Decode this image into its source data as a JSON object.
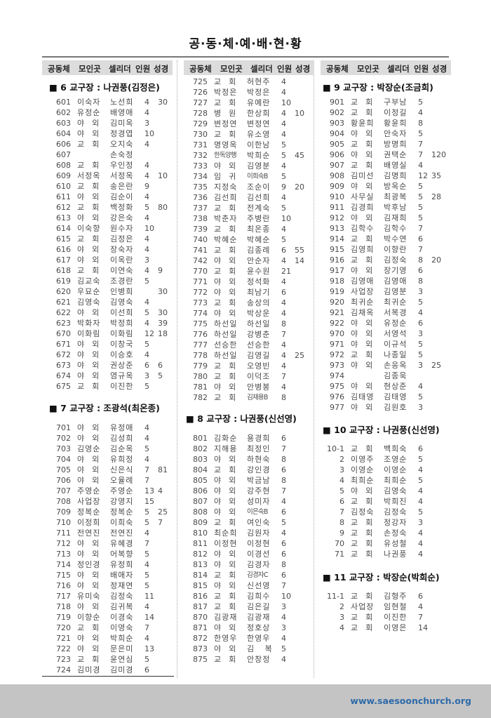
{
  "page_title": "공·동·체·예·배·현·황",
  "columns_header": [
    "공동체",
    "모인곳",
    "셀리더",
    "인원",
    "성경"
  ],
  "sections": {
    "s6": {
      "title": "■ 6 교구장 : 나권풍(김정은)",
      "rows": [
        [
          "601",
          "이숙자",
          "노선희",
          "4",
          "30"
        ],
        [
          "602",
          "유정순",
          "배영애",
          "4",
          ""
        ],
        [
          "603",
          "야외",
          "김미옥",
          "3",
          ""
        ],
        [
          "604",
          "야외",
          "정경엽",
          "10",
          ""
        ],
        [
          "606",
          "교회",
          "오지숙",
          "4",
          ""
        ],
        [
          "607",
          "",
          "손숙정",
          "",
          ""
        ],
        [
          "608",
          "교회",
          "우인정",
          "4",
          ""
        ],
        [
          "609",
          "서정옥",
          "서정옥",
          "4",
          "10"
        ],
        [
          "610",
          "교회",
          "송은란",
          "9",
          ""
        ],
        [
          "611",
          "야외",
          "김순이",
          "4",
          ""
        ],
        [
          "612",
          "교회",
          "백정화",
          "5",
          "80"
        ],
        [
          "613",
          "야외",
          "강은숙",
          "4",
          ""
        ],
        [
          "614",
          "이숙향",
          "원수자",
          "10",
          ""
        ],
        [
          "615",
          "교회",
          "김정은",
          "4",
          ""
        ],
        [
          "616",
          "야외",
          "장숙자",
          "4",
          ""
        ],
        [
          "617",
          "야외",
          "이옥란",
          "3",
          ""
        ],
        [
          "618",
          "교회",
          "이연숙",
          "4",
          "9"
        ],
        [
          "619",
          "김교숙",
          "조경란",
          "5",
          ""
        ],
        [
          "620",
          "우묘순",
          "인병희",
          "",
          "30"
        ],
        [
          "621",
          "김영숙",
          "김영숙",
          "4",
          ""
        ],
        [
          "622",
          "야외",
          "이선희",
          "5",
          "30"
        ],
        [
          "623",
          "박화자",
          "박정희",
          "4",
          "39"
        ],
        [
          "670",
          "이화림",
          "이화림",
          "12",
          "18"
        ],
        [
          "671",
          "야외",
          "이창국",
          "5",
          ""
        ],
        [
          "672",
          "야외",
          "이승호",
          "4",
          ""
        ],
        [
          "673",
          "야외",
          "권상준",
          "6",
          "6"
        ],
        [
          "674",
          "야외",
          "염규옥",
          "3",
          "5"
        ],
        [
          "675",
          "교회",
          "이진한",
          "5",
          ""
        ]
      ]
    },
    "s7": {
      "title": "■ 7 교구장 : 조광석(최온종)",
      "rows": [
        [
          "701",
          "야외",
          "유정애",
          "4",
          ""
        ],
        [
          "702",
          "야외",
          "김성희",
          "4",
          ""
        ],
        [
          "703",
          "김영순",
          "김순옥",
          "5",
          ""
        ],
        [
          "704",
          "야외",
          "유희정",
          "4",
          ""
        ],
        [
          "705",
          "야외",
          "신은식",
          "7",
          "81"
        ],
        [
          "706",
          "야외",
          "오율례",
          "7",
          ""
        ],
        [
          "707",
          "주영순",
          "주영순",
          "13",
          "4"
        ],
        [
          "708",
          "사업장",
          "강영지",
          "15",
          ""
        ],
        [
          "709",
          "정복순",
          "정복순",
          "5",
          "25"
        ],
        [
          "710",
          "이정희",
          "이희숙",
          "5",
          "7"
        ],
        [
          "711",
          "전연진",
          "전연진",
          "4",
          ""
        ],
        [
          "712",
          "야외",
          "유혜경",
          "7",
          ""
        ],
        [
          "713",
          "야외",
          "어복향",
          "5",
          ""
        ],
        [
          "714",
          "정인경",
          "유정희",
          "4",
          ""
        ],
        [
          "715",
          "야외",
          "배애자",
          "5",
          ""
        ],
        [
          "716",
          "야외",
          "정재연",
          "5",
          ""
        ],
        [
          "717",
          "유미숙",
          "김정숙",
          "11",
          ""
        ],
        [
          "718",
          "야외",
          "김귀복",
          "4",
          ""
        ],
        [
          "719",
          "이향순",
          "이경숙",
          "14",
          ""
        ],
        [
          "720",
          "교회",
          "이영숙",
          "7",
          ""
        ],
        [
          "721",
          "야외",
          "박희순",
          "4",
          ""
        ],
        [
          "722",
          "야외",
          "문은미",
          "13",
          ""
        ],
        [
          "723",
          "교회",
          "윤연심",
          "5",
          ""
        ],
        [
          "724",
          "김미경",
          "김미경",
          "6",
          ""
        ]
      ]
    },
    "s7b": {
      "rows": [
        [
          "725",
          "교회",
          "허현주",
          "4",
          ""
        ],
        [
          "726",
          "박정은",
          "박정은",
          "4",
          ""
        ],
        [
          "727",
          "교회",
          "유예란",
          "10",
          ""
        ],
        [
          "728",
          "병원",
          "한상희",
          "4",
          "10"
        ],
        [
          "729",
          "변정연",
          "변정연",
          "4",
          ""
        ],
        [
          "730",
          "교회",
          "유소영",
          "4",
          ""
        ],
        [
          "731",
          "명영옥",
          "이한남",
          "5",
          ""
        ],
        [
          "732",
          "한독양행",
          "박희순",
          "5",
          "45"
        ],
        [
          "733",
          "야외",
          "김영분",
          "4",
          ""
        ],
        [
          "734",
          "임귀",
          "이희숙B",
          "5",
          ""
        ],
        [
          "735",
          "지정숙",
          "조순이",
          "9",
          "20"
        ],
        [
          "736",
          "김선희",
          "김선희",
          "4",
          ""
        ],
        [
          "737",
          "교회",
          "전계숙",
          "5",
          ""
        ],
        [
          "738",
          "박춘자",
          "주병란",
          "10",
          ""
        ],
        [
          "739",
          "교회",
          "최온종",
          "4",
          ""
        ],
        [
          "740",
          "박혜순",
          "박혜순",
          "5",
          ""
        ],
        [
          "741",
          "교회",
          "김종례",
          "6",
          "55"
        ],
        [
          "742",
          "야외",
          "안순자",
          "4",
          "14"
        ],
        [
          "770",
          "교회",
          "윤수원",
          "21",
          ""
        ],
        [
          "771",
          "야외",
          "정석화",
          "4",
          ""
        ],
        [
          "772",
          "야외",
          "최남기",
          "6",
          ""
        ],
        [
          "773",
          "교회",
          "송상의",
          "4",
          ""
        ],
        [
          "774",
          "야외",
          "박상운",
          "4",
          ""
        ],
        [
          "775",
          "하선일",
          "하선일",
          "8",
          ""
        ],
        [
          "776",
          "하선일",
          "강병춘",
          "7",
          ""
        ],
        [
          "777",
          "선승한",
          "선승한",
          "4",
          ""
        ],
        [
          "778",
          "하선일",
          "김영길",
          "4",
          "25"
        ],
        [
          "779",
          "교회",
          "오영빈",
          "4",
          ""
        ],
        [
          "780",
          "교회",
          "이덕조",
          "7",
          ""
        ],
        [
          "781",
          "야외",
          "안병봉",
          "4",
          ""
        ],
        [
          "782",
          "교회",
          "김재용B",
          "8",
          ""
        ]
      ]
    },
    "s8": {
      "title": "■ 8 교구장 : 나권풍(신선영)",
      "rows": [
        [
          "801",
          "김화순",
          "용경희",
          "6",
          ""
        ],
        [
          "802",
          "지해용",
          "최정인",
          "7",
          ""
        ],
        [
          "803",
          "야외",
          "하현숙",
          "8",
          ""
        ],
        [
          "804",
          "교회",
          "강인경",
          "6",
          ""
        ],
        [
          "805",
          "야외",
          "박금남",
          "8",
          ""
        ],
        [
          "806",
          "야외",
          "강주현",
          "7",
          ""
        ],
        [
          "807",
          "야외",
          "성미자",
          "4",
          ""
        ],
        [
          "808",
          "야외",
          "이은숙B",
          "6",
          ""
        ],
        [
          "809",
          "교회",
          "여인숙",
          "5",
          ""
        ],
        [
          "810",
          "최순희",
          "김원자",
          "4",
          ""
        ],
        [
          "811",
          "이정현",
          "이정현",
          "6",
          ""
        ],
        [
          "812",
          "야외",
          "이경선",
          "6",
          ""
        ],
        [
          "813",
          "야외",
          "김경자",
          "8",
          ""
        ],
        [
          "814",
          "교회",
          "김경자C",
          "6",
          ""
        ],
        [
          "815",
          "야외",
          "신선영",
          "7",
          ""
        ],
        [
          "816",
          "교회",
          "김희수",
          "10",
          ""
        ],
        [
          "817",
          "교회",
          "김은길",
          "3",
          ""
        ],
        [
          "870",
          "김광재",
          "김광재",
          "4",
          ""
        ],
        [
          "871",
          "야외",
          "정호상",
          "3",
          ""
        ],
        [
          "872",
          "한영우",
          "한영우",
          "4",
          ""
        ],
        [
          "873",
          "야외",
          "김 복",
          "5",
          ""
        ],
        [
          "875",
          "교회",
          "안창정",
          "4",
          ""
        ]
      ]
    },
    "s9": {
      "title": "■ 9 교구장 : 박장순(조금희)",
      "rows": [
        [
          "901",
          "교회",
          "구부남",
          "5",
          ""
        ],
        [
          "902",
          "교회",
          "이정길",
          "4",
          ""
        ],
        [
          "903",
          "황윤희",
          "황윤희",
          "8",
          ""
        ],
        [
          "904",
          "야외",
          "안숙자",
          "5",
          ""
        ],
        [
          "905",
          "교회",
          "방명희",
          "7",
          ""
        ],
        [
          "906",
          "야외",
          "권택순",
          "7",
          "120"
        ],
        [
          "907",
          "교회",
          "배영실",
          "4",
          ""
        ],
        [
          "908",
          "김미선",
          "김명희",
          "12",
          "35"
        ],
        [
          "909",
          "야외",
          "방옥순",
          "5",
          ""
        ],
        [
          "910",
          "사무실",
          "최광복",
          "5",
          "28"
        ],
        [
          "911",
          "김경희",
          "박후남",
          "5",
          ""
        ],
        [
          "912",
          "야외",
          "김재희",
          "5",
          ""
        ],
        [
          "913",
          "김학수",
          "김학수",
          "7",
          ""
        ],
        [
          "914",
          "교회",
          "박수연",
          "6",
          ""
        ],
        [
          "915",
          "김영희",
          "이향란",
          "7",
          ""
        ],
        [
          "916",
          "교회",
          "김정숙",
          "8",
          "20"
        ],
        [
          "917",
          "야외",
          "장기영",
          "6",
          ""
        ],
        [
          "918",
          "김영애",
          "김영애",
          "8",
          ""
        ],
        [
          "919",
          "사업장",
          "김영분",
          "3",
          ""
        ],
        [
          "920",
          "최귀순",
          "최귀순",
          "5",
          ""
        ],
        [
          "921",
          "김채옥",
          "서복경",
          "4",
          ""
        ],
        [
          "922",
          "야외",
          "유정순",
          "6",
          ""
        ],
        [
          "970",
          "야외",
          "서영석",
          "3",
          ""
        ],
        [
          "971",
          "야외",
          "이규석",
          "5",
          ""
        ],
        [
          "972",
          "교회",
          "나종일",
          "5",
          ""
        ],
        [
          "973",
          "야외",
          "손응옥",
          "3",
          "25"
        ],
        [
          "974",
          "",
          "김종욱",
          "",
          ""
        ],
        [
          "975",
          "야외",
          "현상준",
          "4",
          ""
        ],
        [
          "976",
          "김태영",
          "김태영",
          "5",
          ""
        ],
        [
          "977",
          "야외",
          "김원호",
          "3",
          ""
        ]
      ]
    },
    "s10": {
      "title": "■ 10 교구장 : 나권풍(신선영)",
      "rows": [
        [
          "10-1",
          "교회",
          "백희숙",
          "6",
          ""
        ],
        [
          "2",
          "이영주",
          "조영순",
          "5",
          ""
        ],
        [
          "3",
          "이영순",
          "이영순",
          "4",
          ""
        ],
        [
          "4",
          "최희순",
          "최희순",
          "5",
          ""
        ],
        [
          "5",
          "야외",
          "김영숙",
          "4",
          ""
        ],
        [
          "6",
          "교회",
          "박희진",
          "4",
          ""
        ],
        [
          "7",
          "김정숙",
          "김정숙",
          "5",
          ""
        ],
        [
          "8",
          "교회",
          "정강자",
          "3",
          ""
        ],
        [
          "9",
          "교회",
          "손정숙",
          "4",
          ""
        ],
        [
          "70",
          "교회",
          "유성철",
          "4",
          ""
        ],
        [
          "71",
          "교회",
          "나권풍",
          "4",
          ""
        ]
      ]
    },
    "s11": {
      "title": "■ 11 교구장 : 박장순(박희순)",
      "rows": [
        [
          "11-1",
          "교회",
          "김형주",
          "6",
          ""
        ],
        [
          "2",
          "사업장",
          "임현철",
          "4",
          ""
        ],
        [
          "3",
          "교회",
          "이진한",
          "7",
          ""
        ],
        [
          "4",
          "교회",
          "이영은",
          "14",
          ""
        ]
      ]
    }
  },
  "footer": {
    "url": "www.saesoonchurch.org"
  },
  "colors": {
    "header_bg": "#dcdcdc",
    "footer_bg": "#c4c4c4",
    "url": "#2e6aa8"
  }
}
